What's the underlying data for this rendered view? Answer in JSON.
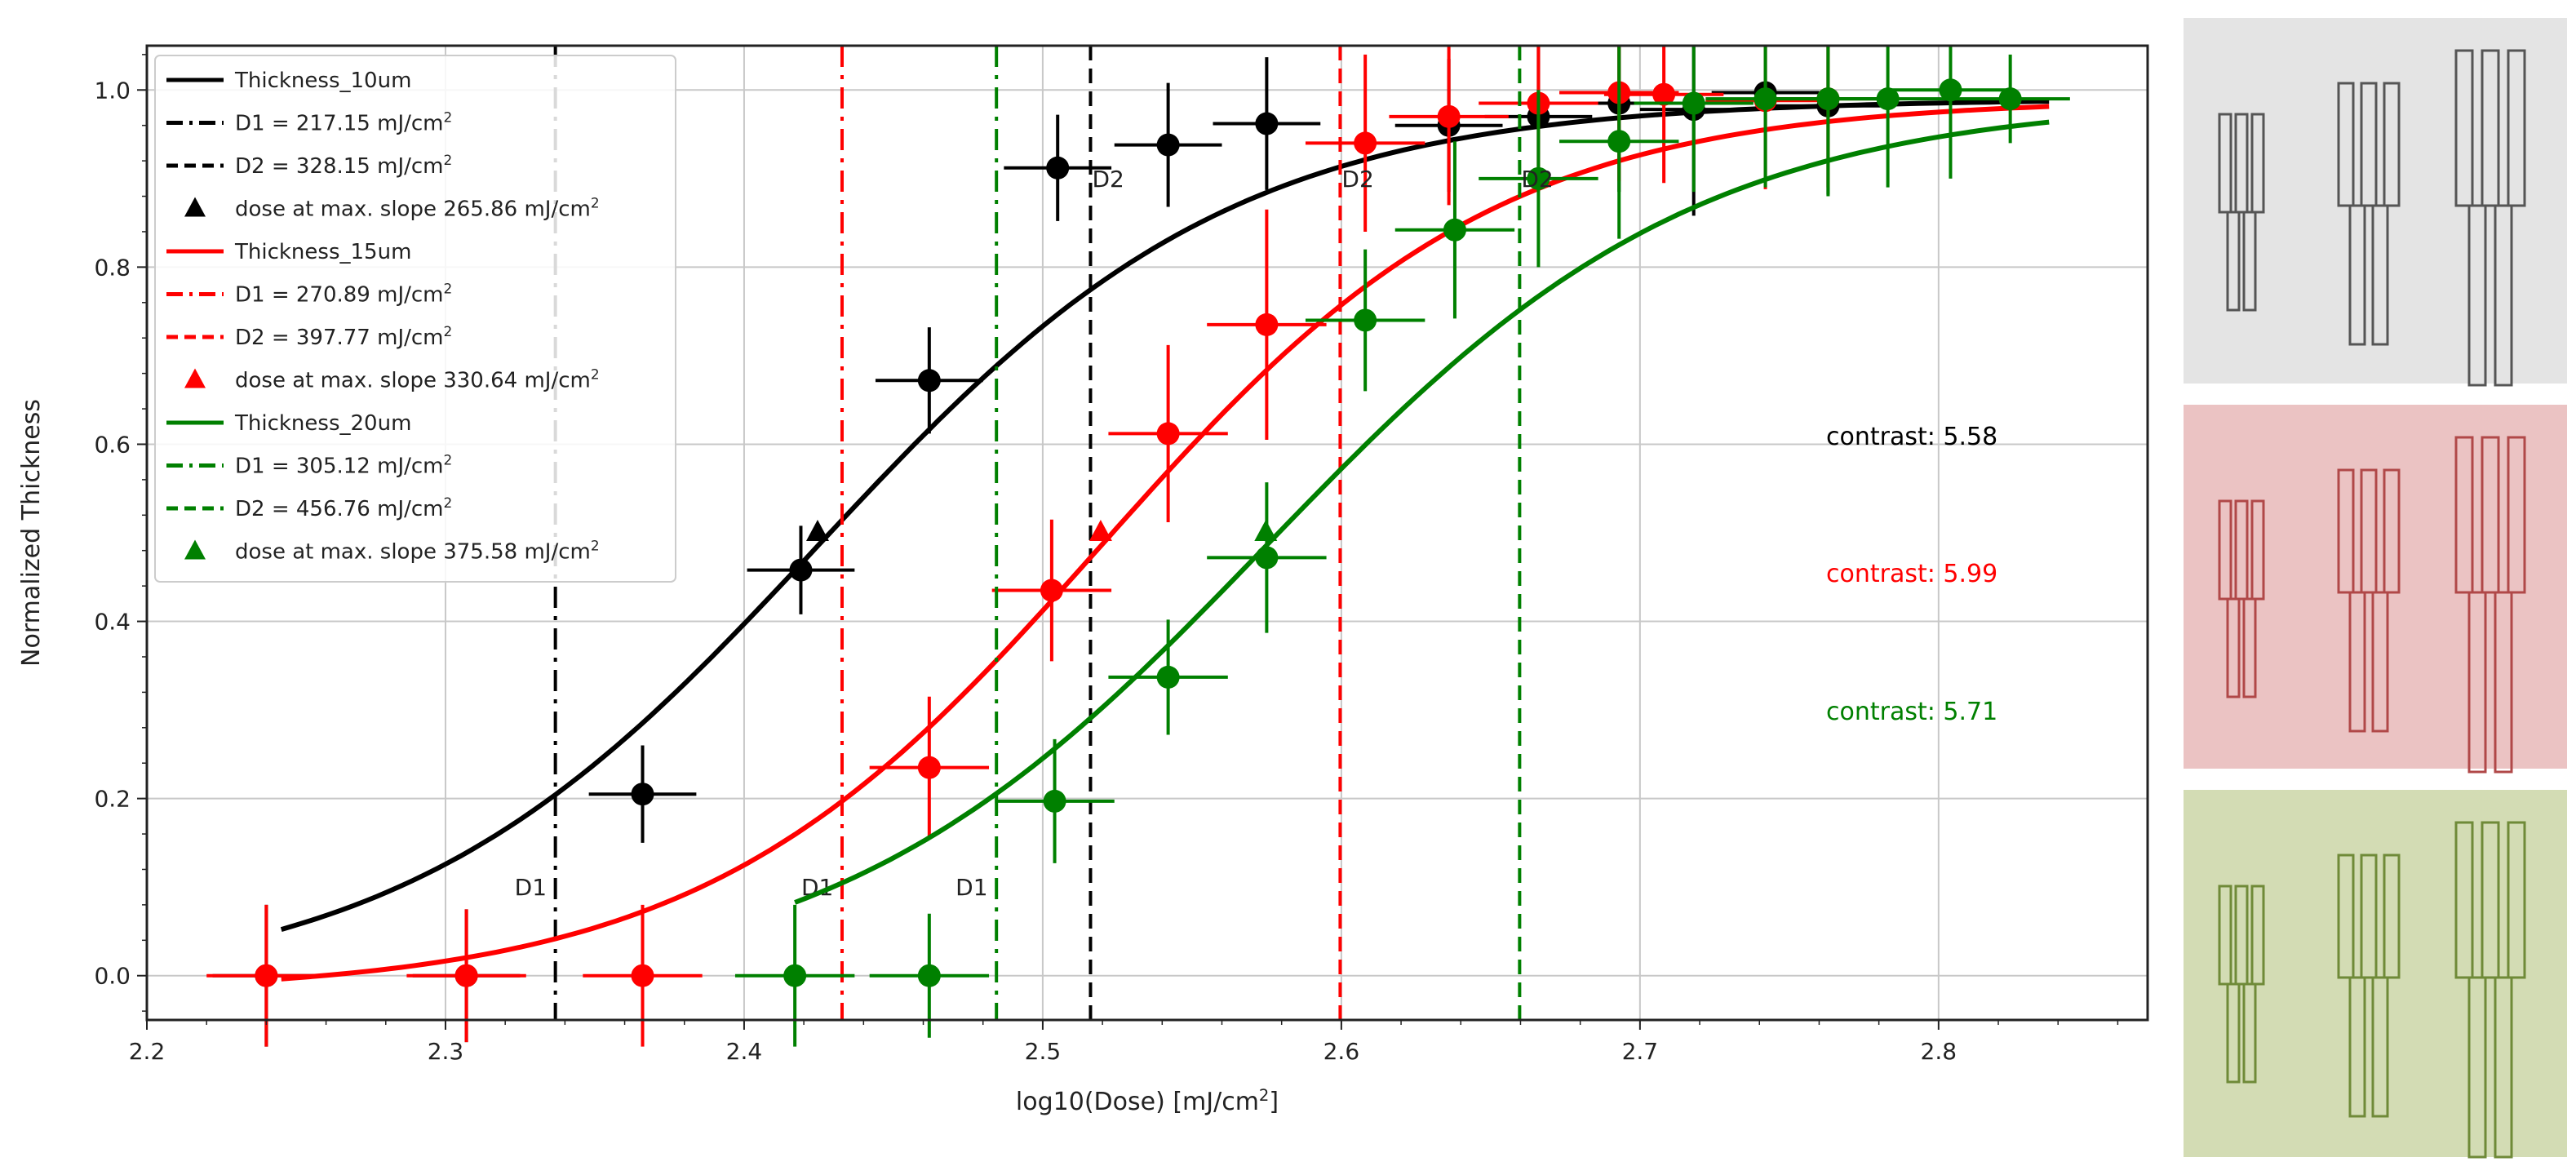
{
  "chart_data": {
    "type": "scatter",
    "xlabel": "log10(Dose) [mJ/cm",
    "xlabel_sup": "2",
    "xlabel_close": "]",
    "ylabel": "Normalized Thickness",
    "xlim": [
      2.2,
      2.87
    ],
    "ylim": [
      -0.05,
      1.05
    ],
    "xticks": [
      "2.2",
      "2.3",
      "2.4",
      "2.5",
      "2.6",
      "2.7",
      "2.8"
    ],
    "yticks": [
      "0.0",
      "0.2",
      "0.4",
      "0.6",
      "0.8",
      "1.0"
    ],
    "grid": true,
    "legend_position": "upper-left",
    "series": [
      {
        "name": "Thickness_10um",
        "color": "#000000",
        "x": [
          2.24,
          2.307,
          2.366,
          2.419,
          2.462,
          2.505,
          2.542,
          2.575,
          2.636,
          2.666,
          2.693,
          2.718,
          2.742,
          2.763
        ],
        "y": [
          0.0,
          0.0,
          0.205,
          0.458,
          0.672,
          0.912,
          0.938,
          0.962,
          0.96,
          0.97,
          0.985,
          0.978,
          0.997,
          0.982
        ],
        "xerr": [
          0.018,
          0.018,
          0.018,
          0.018,
          0.018,
          0.018,
          0.018,
          0.018,
          0.018,
          0.018,
          0.018,
          0.018,
          0.018,
          0.018
        ],
        "yerr": [
          0.08,
          0.075,
          0.055,
          0.05,
          0.06,
          0.06,
          0.07,
          0.075,
          0.075,
          0.08,
          0.1,
          0.12,
          0.1,
          0.1
        ],
        "fit": {
          "x0": 2.4246,
          "k": 6.2,
          "start": 2.245
        },
        "d1_label": "D1 = 217.15 mJ/cm",
        "d2_label": "D2 = 328.15 mJ/cm",
        "slope_label": "dose at max. slope 265.86 mJ/cm",
        "d1": 2.3368,
        "d2": 2.516,
        "max_slope": [
          2.4246,
          0.5
        ],
        "contrast_label": "contrast:",
        "contrast_value": "5.58"
      },
      {
        "name": "Thickness_15um",
        "color": "#ff0000",
        "x": [
          2.24,
          2.307,
          2.366,
          2.462,
          2.503,
          2.542,
          2.575,
          2.608,
          2.636,
          2.666,
          2.693,
          2.708,
          2.742,
          2.763
        ],
        "y": [
          0.0,
          0.0,
          0.0,
          0.235,
          0.435,
          0.612,
          0.735,
          0.94,
          0.97,
          0.985,
          0.997,
          0.995,
          0.988,
          0.99
        ],
        "xerr": [
          0.02,
          0.02,
          0.02,
          0.02,
          0.02,
          0.02,
          0.02,
          0.02,
          0.02,
          0.02,
          0.02,
          0.02,
          0.02,
          0.02
        ],
        "yerr": [
          0.08,
          0.075,
          0.08,
          0.08,
          0.08,
          0.1,
          0.13,
          0.1,
          0.1,
          0.1,
          0.1,
          0.1,
          0.1,
          0.1
        ],
        "fit": {
          "x0": 2.5194,
          "k": 6.5,
          "start": 2.245
        },
        "d1_label": "D1 = 270.89 mJ/cm",
        "d2_label": "D2 = 397.77 mJ/cm",
        "slope_label": "dose at max. slope 330.64 mJ/cm",
        "d1": 2.4328,
        "d2": 2.5996,
        "max_slope": [
          2.5194,
          0.5
        ],
        "contrast_label": "contrast:",
        "contrast_value": "5.99"
      },
      {
        "name": "Thickness_20um",
        "color": "#008000",
        "x": [
          2.417,
          2.462,
          2.504,
          2.542,
          2.575,
          2.608,
          2.638,
          2.666,
          2.693,
          2.718,
          2.742,
          2.763,
          2.783,
          2.804,
          2.824
        ],
        "y": [
          0.0,
          0.0,
          0.197,
          0.337,
          0.472,
          0.74,
          0.842,
          0.9,
          0.942,
          0.985,
          0.99,
          0.99,
          0.99,
          1.0,
          0.99
        ],
        "xerr": [
          0.02,
          0.02,
          0.02,
          0.02,
          0.02,
          0.02,
          0.02,
          0.02,
          0.02,
          0.02,
          0.02,
          0.02,
          0.02,
          0.02,
          0.02
        ],
        "yerr": [
          0.08,
          0.07,
          0.07,
          0.065,
          0.085,
          0.08,
          0.1,
          0.1,
          0.11,
          0.1,
          0.1,
          0.11,
          0.1,
          0.1,
          0.05
        ],
        "fit": {
          "x0": 2.5747,
          "k": 6.0,
          "start": 2.417
        },
        "d1_label": "D1 = 305.12 mJ/cm",
        "d2_label": "D2 = 456.76 mJ/cm",
        "slope_label": "dose at max. slope 375.58 mJ/cm",
        "d1": 2.4845,
        "d2": 2.6597,
        "max_slope": [
          2.5747,
          0.5
        ],
        "contrast_label": "contrast:",
        "contrast_value": "5.71"
      }
    ],
    "unit_sup": "2",
    "line_markers": {
      "d1": "D1",
      "d2": "D2"
    }
  },
  "side_images": [
    {
      "tint": "#e4e4e4",
      "stroke": "#555555"
    },
    {
      "tint": "#ebc3c3",
      "stroke": "#b04848"
    },
    {
      "tint": "#d3dcb4",
      "stroke": "#6f8a38"
    }
  ]
}
